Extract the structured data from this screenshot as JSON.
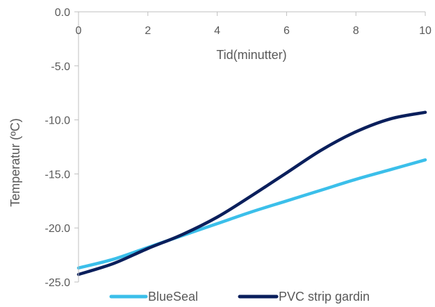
{
  "chart_data": {
    "type": "line",
    "xlabel": "Tid(minutter)",
    "ylabel": "Temperatur (ºC)",
    "xlim": [
      0,
      10
    ],
    "ylim": [
      -25,
      0
    ],
    "x_ticks": [
      "0",
      "2",
      "4",
      "6",
      "8",
      "10"
    ],
    "y_ticks": [
      "0.0",
      "-5.0",
      "-10.0",
      "-15.0",
      "-20.0",
      "-25.0"
    ],
    "x_axis_position": "top",
    "grid": false,
    "legend_position": "bottom",
    "x": [
      0,
      1,
      2,
      3,
      4,
      5,
      6,
      7,
      8,
      9,
      10
    ],
    "series": [
      {
        "name": "BlueSeal",
        "color": "#3bbfea",
        "values": [
          -23.7,
          -22.9,
          -21.8,
          -20.7,
          -19.6,
          -18.5,
          -17.5,
          -16.5,
          -15.5,
          -14.6,
          -13.7
        ]
      },
      {
        "name": "PVC strip gardin",
        "color": "#0a1f5c",
        "values": [
          -24.3,
          -23.3,
          -21.9,
          -20.6,
          -19.0,
          -17.0,
          -14.9,
          -12.8,
          -11.1,
          -9.9,
          -9.3
        ]
      }
    ]
  }
}
